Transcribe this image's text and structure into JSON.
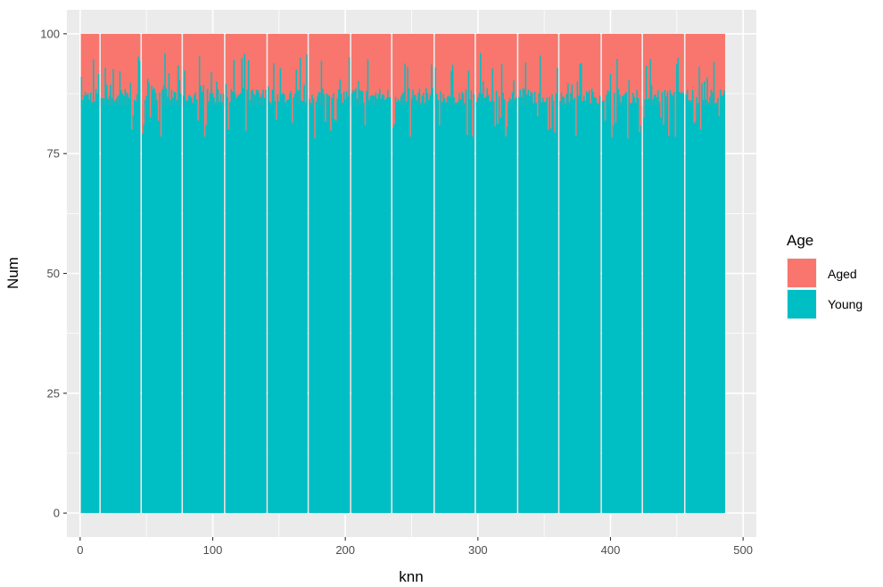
{
  "chart_data": {
    "type": "bar",
    "stacked": true,
    "xlabel": "knn",
    "ylabel": "Num",
    "xlim": [
      -10,
      510
    ],
    "ylim": [
      -5,
      105
    ],
    "xticks": [
      0,
      100,
      200,
      300,
      400,
      500
    ],
    "yticks": [
      0,
      25,
      50,
      75,
      100
    ],
    "grid": true,
    "legend": {
      "title": "Age",
      "placement": "right",
      "entries": [
        {
          "name": "Aged",
          "color": "#F8766D"
        },
        {
          "name": "Young",
          "color": "#00BFC4"
        }
      ]
    },
    "colors": {
      "Aged": "#F8766D",
      "Young": "#00BFC4",
      "panel": "#EBEBEB",
      "grid": "#FFFFFF"
    },
    "groups": [
      {
        "start": 1,
        "end": 14
      },
      {
        "start": 16,
        "end": 45
      },
      {
        "start": 47,
        "end": 76
      },
      {
        "start": 78,
        "end": 108
      },
      {
        "start": 110,
        "end": 140
      },
      {
        "start": 142,
        "end": 171
      },
      {
        "start": 173,
        "end": 203
      },
      {
        "start": 205,
        "end": 234
      },
      {
        "start": 236,
        "end": 266
      },
      {
        "start": 268,
        "end": 297
      },
      {
        "start": 299,
        "end": 329
      },
      {
        "start": 331,
        "end": 360
      },
      {
        "start": 362,
        "end": 392
      },
      {
        "start": 394,
        "end": 423
      },
      {
        "start": 425,
        "end": 455
      },
      {
        "start": 457,
        "end": 486
      }
    ],
    "series": [
      {
        "name": "Aged",
        "values_note": "remainder to 100"
      },
      {
        "name": "Young",
        "baseline": 85,
        "range": [
          78,
          96
        ]
      }
    ]
  }
}
